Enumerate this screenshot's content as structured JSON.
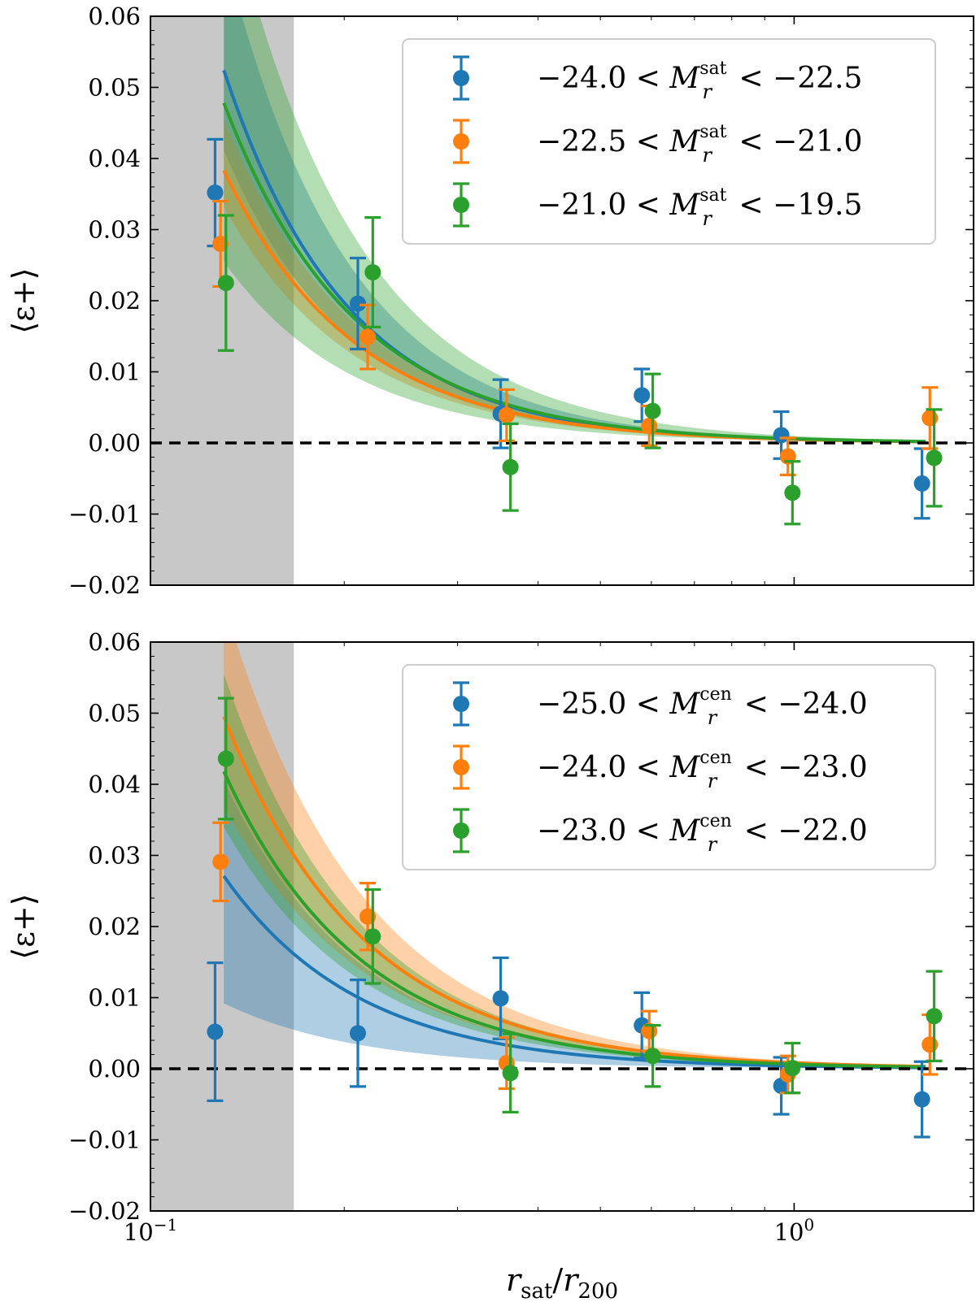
{
  "colors": {
    "blue": "#1f77b4",
    "orange": "#ff7f0e",
    "green": "#2ca02c",
    "excluded_region": "#c8c8c8",
    "zero_line": "#000000"
  },
  "chart_data": [
    {
      "type": "scatter",
      "panel": "top",
      "xscale": "log",
      "xlim": [
        0.1,
        1.9
      ],
      "ylim": [
        -0.02,
        0.06
      ],
      "ylabel": "⟨ε+⟩",
      "xlabel": "",
      "yticks": [
        -0.02,
        -0.01,
        0.0,
        0.01,
        0.02,
        0.03,
        0.04,
        0.05,
        0.06
      ],
      "ytick_labels": [
        "−0.02",
        "−0.01",
        "0.00",
        "0.01",
        "0.02",
        "0.03",
        "0.04",
        "0.05",
        "0.06"
      ],
      "shaded_region_x": [
        0.1,
        0.167
      ],
      "zero_line": 0.0,
      "legend_position": "upper-right",
      "legend_var": "sat",
      "series": [
        {
          "name": "−24.0 < M_r^sat < −22.5",
          "label_left": "−24.0 <",
          "label_right": "< −22.5",
          "color": "blue",
          "x": [
            0.126,
            0.21,
            0.35,
            0.58,
            0.955,
            1.58
          ],
          "y": [
            0.0352,
            0.0196,
            0.0041,
            0.0067,
            0.0011,
            -0.0057
          ],
          "yerr": [
            0.0075,
            0.0064,
            0.0048,
            0.0037,
            0.0033,
            0.0049
          ],
          "model": {
            "x": [
              0.13,
              1.6
            ],
            "A": 0.0524,
            "x0": 0.13,
            "slope": -2.27,
            "band": [
              0.0412,
              0.0695
            ]
          }
        },
        {
          "name": "−22.5 < M_r^sat < −21.0",
          "label_left": "−22.5 <",
          "label_right": "< −21.0",
          "color": "orange",
          "x": [
            0.1285,
            0.2175,
            0.3575,
            0.5955,
            0.978,
            1.625
          ],
          "y": [
            0.028,
            0.0149,
            0.0039,
            0.0024,
            -0.0019,
            0.0035
          ],
          "yerr": [
            0.006,
            0.0045,
            0.0036,
            0.0028,
            0.0026,
            0.0043
          ],
          "model": {
            "x": [
              0.13,
              1.6
            ],
            "A": 0.0383,
            "x0": 0.13,
            "slope": -2.13,
            "band": [
              0.0332,
              0.0456
            ]
          }
        },
        {
          "name": "−21.0 < M_r^sat < −19.5",
          "label_left": "−21.0 <",
          "label_right": "< −19.5",
          "color": "green",
          "x": [
            0.131,
            0.2215,
            0.3625,
            0.603,
            0.994,
            1.65
          ],
          "y": [
            0.0225,
            0.024,
            -0.0034,
            0.0045,
            -0.007,
            -0.0021
          ],
          "yerr": [
            0.0095,
            0.0077,
            0.0061,
            0.0052,
            0.0044,
            0.0068
          ],
          "model": {
            "x": [
              0.13,
              1.6
            ],
            "A": 0.0478,
            "x0": 0.13,
            "slope": -2.15,
            "band": [
              0.0255,
              0.0791
            ]
          }
        }
      ]
    },
    {
      "type": "scatter",
      "panel": "bottom",
      "xscale": "log",
      "xlim": [
        0.1,
        1.9
      ],
      "ylim": [
        -0.02,
        0.06
      ],
      "ylabel": "⟨ε+⟩",
      "xlabel": "r_sat / r_200",
      "yticks": [
        -0.02,
        -0.01,
        0.0,
        0.01,
        0.02,
        0.03,
        0.04,
        0.05,
        0.06
      ],
      "ytick_labels": [
        "−0.02",
        "−0.01",
        "0.00",
        "0.01",
        "0.02",
        "0.03",
        "0.04",
        "0.05",
        "0.06"
      ],
      "xticks": [
        0.1,
        1.0
      ],
      "xtick_labels": [
        {
          "base": "10",
          "exp": "−1"
        },
        {
          "base": "10",
          "exp": "0"
        }
      ],
      "shaded_region_x": [
        0.1,
        0.167
      ],
      "zero_line": 0.0,
      "legend_position": "upper-right",
      "legend_var": "cen",
      "series": [
        {
          "name": "−25.0 < M_r^cen < −24.0",
          "label_left": "−25.0 <",
          "label_right": "< −24.0",
          "color": "blue",
          "x": [
            0.126,
            0.21,
            0.35,
            0.58,
            0.955,
            1.58
          ],
          "y": [
            0.0052,
            0.005,
            0.0099,
            0.0061,
            -0.0024,
            -0.0043
          ],
          "yerr": [
            0.0097,
            0.0075,
            0.0057,
            0.0046,
            0.004,
            0.0053
          ],
          "model": {
            "x": [
              0.13,
              1.6
            ],
            "A": 0.0271,
            "x0": 0.13,
            "slope": -2.07,
            "band": [
              0.0092,
              0.0405
            ]
          }
        },
        {
          "name": "−24.0 < M_r^cen < −23.0",
          "label_left": "−24.0 <",
          "label_right": "< −23.0",
          "color": "orange",
          "x": [
            0.1285,
            0.2175,
            0.3575,
            0.5955,
            0.978,
            1.625
          ],
          "y": [
            0.0291,
            0.0214,
            0.0008,
            0.0053,
            -0.0008,
            0.0034
          ],
          "yerr": [
            0.0055,
            0.0047,
            0.0036,
            0.0028,
            0.0026,
            0.0042
          ],
          "model": {
            "x": [
              0.13,
              1.6
            ],
            "A": 0.0495,
            "x0": 0.13,
            "slope": -2.0,
            "band": [
              0.037,
              0.0655
            ]
          }
        },
        {
          "name": "−23.0 < M_r^cen < −22.0",
          "label_left": "−23.0 <",
          "label_right": "< −22.0",
          "color": "green",
          "x": [
            0.131,
            0.2215,
            0.3625,
            0.603,
            0.994,
            1.65
          ],
          "y": [
            0.0436,
            0.0186,
            -0.0006,
            0.0018,
            0.0001,
            0.0074
          ],
          "yerr": [
            0.0085,
            0.0066,
            0.0055,
            0.0043,
            0.0035,
            0.0063
          ],
          "model": {
            "x": [
              0.13,
              1.6
            ],
            "A": 0.0418,
            "x0": 0.13,
            "slope": -2.05,
            "band": [
              0.034,
              0.0555
            ]
          }
        }
      ]
    }
  ]
}
